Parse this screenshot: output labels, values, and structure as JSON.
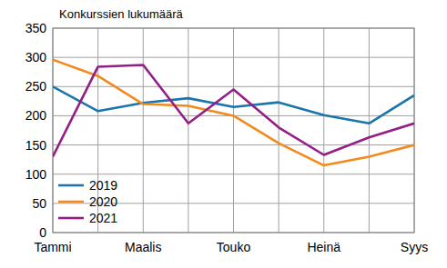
{
  "chart_data": {
    "type": "line",
    "title": "Konkurssien lukumäärä",
    "categories": [
      "Tammi",
      null,
      "Maalis",
      null,
      "Touko",
      null,
      "Heinä",
      null,
      "Syys"
    ],
    "series": [
      {
        "name": "2019",
        "color": "#1a75ad",
        "values": [
          250,
          208,
          222,
          230,
          215,
          223,
          201,
          187,
          235
        ]
      },
      {
        "name": "2020",
        "color": "#f28a1e",
        "values": [
          296,
          268,
          220,
          217,
          200,
          153,
          115,
          130,
          150
        ]
      },
      {
        "name": "2021",
        "color": "#941e87",
        "values": [
          130,
          284,
          287,
          187,
          245,
          180,
          133,
          163,
          187
        ]
      }
    ],
    "ylim": [
      0,
      350
    ],
    "yticks": [
      0,
      50,
      100,
      150,
      200,
      250,
      300,
      350
    ],
    "grid": true,
    "legend": "lower left"
  }
}
